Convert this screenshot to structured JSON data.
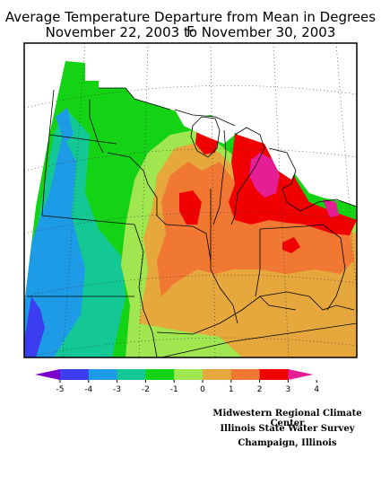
{
  "title_line1": "Average Temperature Departure from Mean in Degrees F",
  "title_line2": "November 22, 2003 to November 30, 2003",
  "legend": {
    "ticks": [
      "-5",
      "-4",
      "-3",
      "-2",
      "-1",
      "0",
      "1",
      "2",
      "3",
      "4"
    ],
    "colors": [
      "#7a00cc",
      "#3c3cf0",
      "#1e9be6",
      "#14c896",
      "#14d214",
      "#a0e650",
      "#e6a83c",
      "#f07832",
      "#f00000",
      "#e61e96"
    ]
  },
  "credits": {
    "line1": "Midwestern Regional Climate Center",
    "line2": "Illinois State Water Survey",
    "line3": "Champaign, Illinois"
  }
}
